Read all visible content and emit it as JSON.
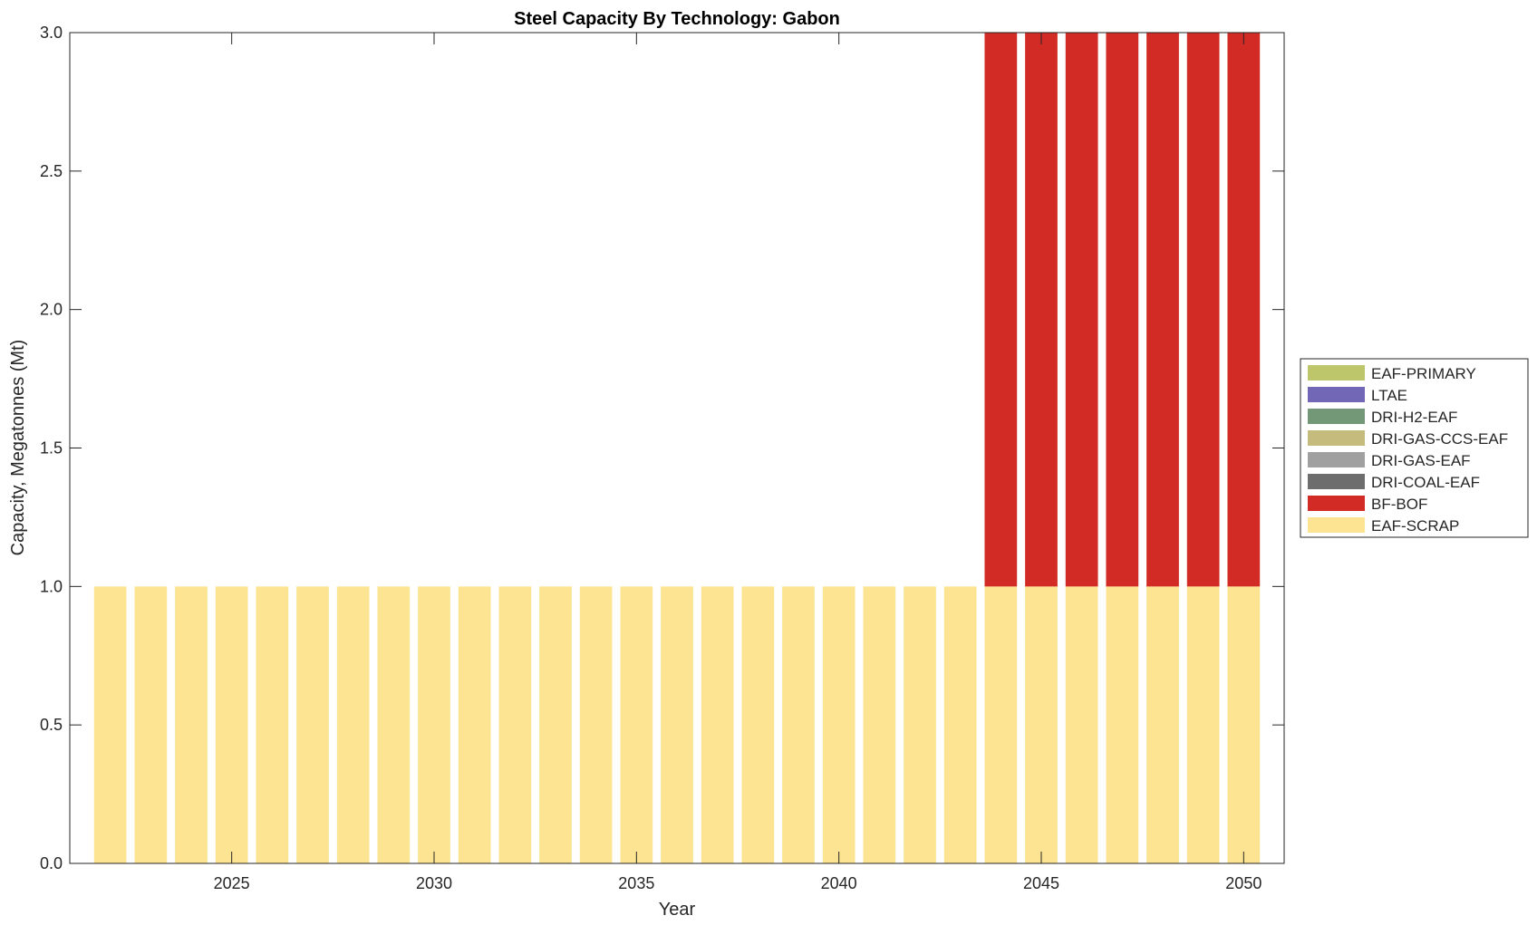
{
  "chart_data": {
    "type": "bar",
    "stacked": true,
    "title": "Steel Capacity By Technology: Gabon",
    "xlabel": "Year",
    "ylabel": "Capacity, Megatonnes (Mt)",
    "xlim": [
      2021,
      2051
    ],
    "ylim": [
      0,
      3
    ],
    "xticks": [
      2025,
      2030,
      2035,
      2040,
      2045,
      2050
    ],
    "yticks": [
      0.0,
      0.5,
      1.0,
      1.5,
      2.0,
      2.5,
      3.0
    ],
    "ytick_labels": [
      "0.0",
      "0.5",
      "1.0",
      "1.5",
      "2.0",
      "2.5",
      "3.0"
    ],
    "grid": false,
    "legend_position": "right",
    "x": [
      2022,
      2023,
      2024,
      2025,
      2026,
      2027,
      2028,
      2029,
      2030,
      2031,
      2032,
      2033,
      2034,
      2035,
      2036,
      2037,
      2038,
      2039,
      2040,
      2041,
      2042,
      2043,
      2044,
      2045,
      2046,
      2047,
      2048,
      2049,
      2050
    ],
    "series": [
      {
        "name": "EAF-SCRAP",
        "color": "#fde493",
        "values": [
          1,
          1,
          1,
          1,
          1,
          1,
          1,
          1,
          1,
          1,
          1,
          1,
          1,
          1,
          1,
          1,
          1,
          1,
          1,
          1,
          1,
          1,
          1,
          1,
          1,
          1,
          1,
          1,
          1
        ]
      },
      {
        "name": "BF-BOF",
        "color": "#d22a24",
        "values": [
          0,
          0,
          0,
          0,
          0,
          0,
          0,
          0,
          0,
          0,
          0,
          0,
          0,
          0,
          0,
          0,
          0,
          0,
          0,
          0,
          0,
          0,
          2,
          2,
          2,
          2,
          2,
          2,
          2
        ]
      },
      {
        "name": "DRI-COAL-EAF",
        "color": "#6d6d6d",
        "values": [
          0,
          0,
          0,
          0,
          0,
          0,
          0,
          0,
          0,
          0,
          0,
          0,
          0,
          0,
          0,
          0,
          0,
          0,
          0,
          0,
          0,
          0,
          0,
          0,
          0,
          0,
          0,
          0,
          0
        ]
      },
      {
        "name": "DRI-GAS-EAF",
        "color": "#a0a0a0",
        "values": [
          0,
          0,
          0,
          0,
          0,
          0,
          0,
          0,
          0,
          0,
          0,
          0,
          0,
          0,
          0,
          0,
          0,
          0,
          0,
          0,
          0,
          0,
          0,
          0,
          0,
          0,
          0,
          0,
          0
        ]
      },
      {
        "name": "DRI-GAS-CCS-EAF",
        "color": "#c4bb7d",
        "values": [
          0,
          0,
          0,
          0,
          0,
          0,
          0,
          0,
          0,
          0,
          0,
          0,
          0,
          0,
          0,
          0,
          0,
          0,
          0,
          0,
          0,
          0,
          0,
          0,
          0,
          0,
          0,
          0,
          0
        ]
      },
      {
        "name": "DRI-H2-EAF",
        "color": "#729878",
        "values": [
          0,
          0,
          0,
          0,
          0,
          0,
          0,
          0,
          0,
          0,
          0,
          0,
          0,
          0,
          0,
          0,
          0,
          0,
          0,
          0,
          0,
          0,
          0,
          0,
          0,
          0,
          0,
          0,
          0
        ]
      },
      {
        "name": "LTAE",
        "color": "#7167b6",
        "values": [
          0,
          0,
          0,
          0,
          0,
          0,
          0,
          0,
          0,
          0,
          0,
          0,
          0,
          0,
          0,
          0,
          0,
          0,
          0,
          0,
          0,
          0,
          0,
          0,
          0,
          0,
          0,
          0,
          0
        ]
      },
      {
        "name": "EAF-PRIMARY",
        "color": "#bec66b",
        "values": [
          0,
          0,
          0,
          0,
          0,
          0,
          0,
          0,
          0,
          0,
          0,
          0,
          0,
          0,
          0,
          0,
          0,
          0,
          0,
          0,
          0,
          0,
          0,
          0,
          0,
          0,
          0,
          0,
          0
        ]
      }
    ],
    "legend_order": [
      "EAF-PRIMARY",
      "LTAE",
      "DRI-H2-EAF",
      "DRI-GAS-CCS-EAF",
      "DRI-GAS-EAF",
      "DRI-COAL-EAF",
      "BF-BOF",
      "EAF-SCRAP"
    ]
  }
}
